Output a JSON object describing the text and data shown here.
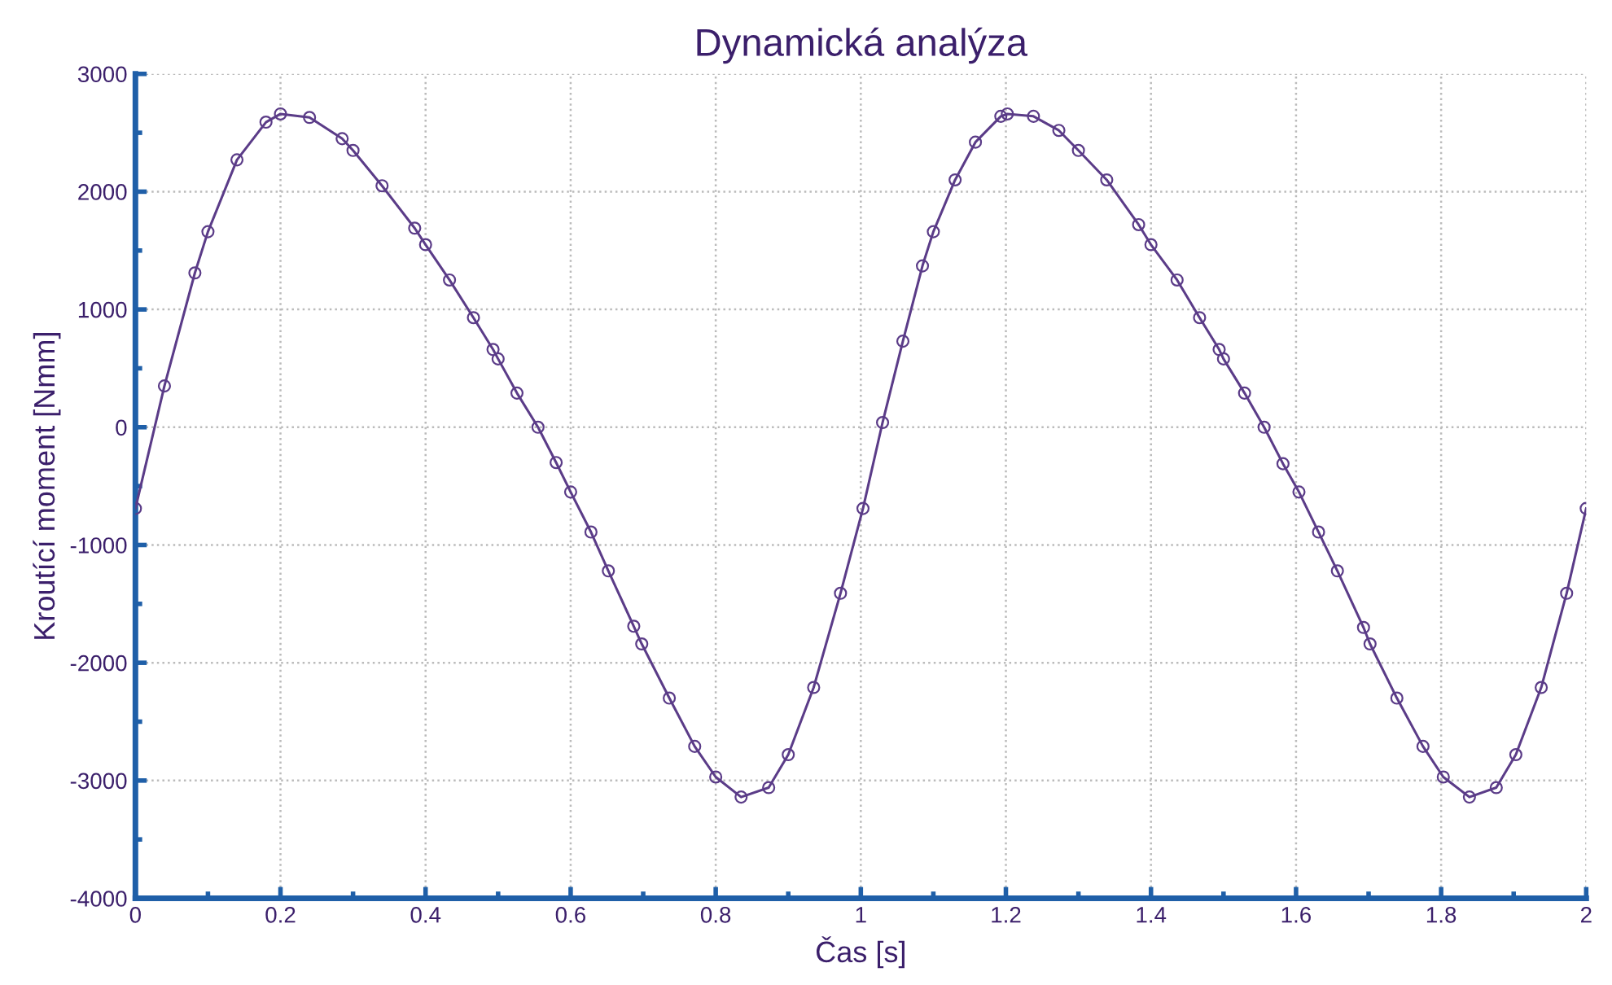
{
  "chart_data": {
    "type": "line",
    "title": "Dynamická analýza",
    "xlabel": "Čas [s]",
    "ylabel": "Kroutící moment [Nmm]",
    "series": [
      {
        "color": "#5b3c88",
        "x": [
          0,
          0.04,
          0.082,
          0.1,
          0.14,
          0.18,
          0.2,
          0.24,
          0.285,
          0.3,
          0.34,
          0.385,
          0.4,
          0.433,
          0.466,
          0.493,
          0.5,
          0.526,
          0.555,
          0.58,
          0.6,
          0.628,
          0.652,
          0.687,
          0.698,
          0.736,
          0.771,
          0.8,
          0.835,
          0.873,
          0.9,
          0.935,
          0.972,
          1.003,
          1.03,
          1.058,
          1.085,
          1.1,
          1.13,
          1.158,
          1.193,
          1.202,
          1.238,
          1.273,
          1.3,
          1.339,
          1.383,
          1.4,
          1.436,
          1.467,
          1.494,
          1.5,
          1.529,
          1.556,
          1.582,
          1.604,
          1.631,
          1.657,
          1.693,
          1.702,
          1.739,
          1.775,
          1.803,
          1.839,
          1.876,
          1.903,
          1.938,
          1.973,
          2.0
        ],
        "values": [
          -690,
          350,
          1310,
          1660,
          2270,
          2590,
          2660,
          2630,
          2450,
          2350,
          2050,
          1690,
          1550,
          1250,
          930,
          660,
          580,
          290,
          0,
          -300,
          -550,
          -890,
          -1220,
          -1690,
          -1840,
          -2300,
          -2710,
          -2970,
          -3140,
          -3060,
          -2780,
          -2210,
          -1410,
          -690,
          40,
          730,
          1370,
          1660,
          2100,
          2420,
          2640,
          2660,
          2640,
          2520,
          2350,
          2100,
          1720,
          1550,
          1250,
          930,
          660,
          580,
          290,
          0,
          -310,
          -550,
          -890,
          -1220,
          -1700,
          -1840,
          -2300,
          -2710,
          -2970,
          -3140,
          -3060,
          -2780,
          -2210,
          -1410,
          -690
        ]
      }
    ],
    "xlim": [
      0,
      2
    ],
    "xticks": [
      0,
      0.2,
      0.4,
      0.6,
      0.8,
      1,
      1.2,
      1.4,
      1.6,
      1.8,
      2,
      {
        "value": 0.1,
        "label": null
      },
      {
        "value": 0.3,
        "label": null
      },
      {
        "value": 0.5,
        "label": null
      },
      {
        "value": 0.7,
        "label": null
      },
      {
        "value": 0.9,
        "label": null
      },
      {
        "value": 1.1,
        "label": null
      },
      {
        "value": 1.3,
        "label": null
      },
      {
        "value": 1.5,
        "label": null
      },
      {
        "value": 1.7,
        "label": null
      },
      {
        "value": 1.9,
        "label": null
      }
    ],
    "ylim": [
      -4000,
      3000
    ],
    "yticks": [
      -4000,
      -3000,
      -2000,
      -1000,
      0,
      1000,
      2000,
      3000,
      {
        "value": -3500,
        "label": null
      },
      {
        "value": -2500,
        "label": null
      },
      {
        "value": -1500,
        "label": null
      },
      {
        "value": -500,
        "label": null
      },
      {
        "value": 500,
        "label": null
      },
      {
        "value": 1500,
        "label": null
      },
      {
        "value": 2500,
        "label": null
      }
    ],
    "grid": true,
    "marker": "circle",
    "line_style": "solid",
    "legend": false
  }
}
